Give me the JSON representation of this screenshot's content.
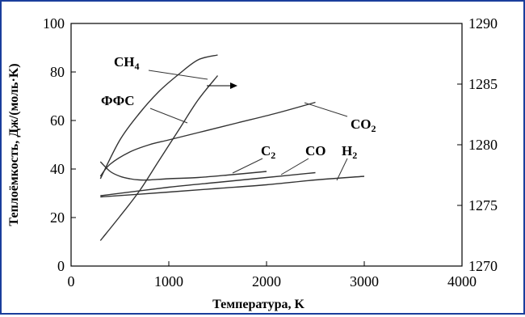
{
  "chart_data": {
    "type": "line",
    "xlabel": "Температура, K",
    "ylabel": "Теплоёмкость, Дж/(моль·K)",
    "xlim": [
      0,
      4000
    ],
    "ylim": [
      0,
      100
    ],
    "y2lim": [
      1270,
      1290
    ],
    "x_ticks": [
      "0",
      "1000",
      "2000",
      "3000",
      "4000"
    ],
    "y_ticks": [
      "0",
      "20",
      "40",
      "60",
      "80",
      "100"
    ],
    "y2_ticks": [
      "1270",
      "1275",
      "1280",
      "1285",
      "1290"
    ],
    "grid": false,
    "series": [
      {
        "name": "CH4",
        "label_base": "CH",
        "label_sub": "4",
        "x": [
          300,
          500,
          700,
          900,
          1100,
          1300,
          1500
        ],
        "y": [
          36,
          52,
          63,
          72,
          79,
          85,
          87
        ]
      },
      {
        "name": "ФФС",
        "label_base": "ФФС",
        "label_sub": "",
        "axis": "right",
        "x": [
          300,
          500,
          700,
          900,
          1100,
          1300,
          1500
        ],
        "y": [
          1272.1,
          1274.1,
          1276.2,
          1278.7,
          1281.2,
          1283.7,
          1285.7
        ]
      },
      {
        "name": "CO2",
        "label_base": "CO",
        "label_sub": "2",
        "x": [
          300,
          400,
          600,
          800,
          1000,
          1300,
          1700,
          2100,
          2500
        ],
        "y": [
          37,
          42,
          47,
          50,
          52,
          55,
          59,
          63,
          67.5
        ]
      },
      {
        "name": "C2",
        "label_base": "C",
        "label_sub": "2",
        "x": [
          300,
          400,
          500,
          600,
          700,
          800,
          1000,
          1300,
          1600,
          2000
        ],
        "y": [
          43,
          39,
          37,
          36,
          35.5,
          35.5,
          36,
          36.5,
          37.5,
          39
        ]
      },
      {
        "name": "CO",
        "label_base": "CO",
        "label_sub": "",
        "x": [
          300,
          1000,
          1500,
          2000,
          2500
        ],
        "y": [
          29,
          32.5,
          34.5,
          36.5,
          38.5
        ]
      },
      {
        "name": "H2",
        "label_base": "H",
        "label_sub": "2",
        "x": [
          300,
          1000,
          1500,
          2000,
          2500,
          3000
        ],
        "y": [
          28.5,
          30.5,
          32,
          33.5,
          35.5,
          37
        ]
      }
    ]
  }
}
